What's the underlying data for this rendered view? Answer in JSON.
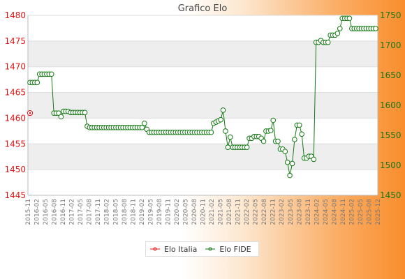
{
  "chart_data": {
    "type": "line",
    "title": "Grafico Elo",
    "series": [
      {
        "name": "Elo Italia",
        "axis": "left",
        "color": "#e01515",
        "points": [
          [
            0,
            1461
          ]
        ]
      },
      {
        "name": "Elo FIDE",
        "axis": "right",
        "color": "#147814",
        "values": [
          1638,
          1638,
          1638,
          1638,
          1652,
          1652,
          1652,
          1652,
          1652,
          1652,
          1587,
          1587,
          1587,
          1581,
          1590,
          1590,
          1590,
          1588,
          1588,
          1588,
          1588,
          1588,
          1588,
          1588,
          1565,
          1563,
          1563,
          1563,
          1563,
          1563,
          1563,
          1563,
          1563,
          1563,
          1563,
          1563,
          1563,
          1563,
          1563,
          1563,
          1563,
          1563,
          1563,
          1563,
          1563,
          1563,
          1563,
          1563,
          1570,
          1560,
          1555,
          1555,
          1555,
          1555,
          1555,
          1555,
          1555,
          1555,
          1555,
          1555,
          1555,
          1555,
          1555,
          1555,
          1555,
          1555,
          1555,
          1555,
          1555,
          1555,
          1555,
          1555,
          1555,
          1555,
          1555,
          1555,
          1555,
          1570,
          1572,
          1574,
          1576,
          1592,
          1557,
          1530,
          1547,
          1530,
          1530,
          1530,
          1530,
          1530,
          1530,
          1530,
          1545,
          1545,
          1548,
          1548,
          1548,
          1545,
          1540,
          1557,
          1557,
          1558,
          1575,
          1540,
          1540,
          1527,
          1527,
          1523,
          1505,
          1483,
          1503,
          1543,
          1567,
          1567,
          1552,
          1512,
          1512,
          1515,
          1515,
          1510,
          1705,
          1705,
          1708,
          1705,
          1705,
          1705,
          1717,
          1717,
          1717,
          1720,
          1728,
          1745,
          1745,
          1745,
          1745,
          1728,
          1728,
          1728,
          1728,
          1728,
          1728,
          1728,
          1728,
          1728,
          1728,
          1728
        ]
      }
    ],
    "left_axis": {
      "ylim": [
        1445,
        1480
      ],
      "ticks": [
        "1445",
        "1450",
        "1455",
        "1460",
        "1465",
        "1470",
        "1475",
        "1480"
      ]
    },
    "right_axis": {
      "ylim": [
        1450,
        1750
      ],
      "ticks": [
        "1450",
        "1500",
        "1550",
        "1600",
        "1650",
        "1700",
        "1750"
      ]
    },
    "x_axis": {
      "labels_rotated": true,
      "tick_labels": [
        "2015-11",
        "2016-02",
        "2016-05",
        "2016-08",
        "2016-11",
        "2017-02",
        "2017-05",
        "2017-08",
        "2017-11",
        "2018-02",
        "2018-05",
        "2018-08",
        "2018-11",
        "2019-02",
        "2019-05",
        "2019-08",
        "2019-11",
        "2020-02",
        "2020-05",
        "2020-08",
        "2020-11",
        "2021-02",
        "2021-05",
        "2021-08",
        "2021-11",
        "2022-02",
        "2022-05",
        "2022-08",
        "2022-11",
        "2023-02",
        "2023-05",
        "2023-08",
        "2023-11",
        "2024-02",
        "2024-05",
        "2024-08",
        "2024-11",
        "2025-02",
        "2025-05",
        "2025-08",
        "2025-12"
      ]
    },
    "legend": {
      "position": "bottom-center",
      "entries": [
        "Elo Italia",
        "Elo FIDE"
      ]
    },
    "grid": true,
    "plot_bands": [
      "#ffffff",
      "#eeeeee"
    ]
  }
}
